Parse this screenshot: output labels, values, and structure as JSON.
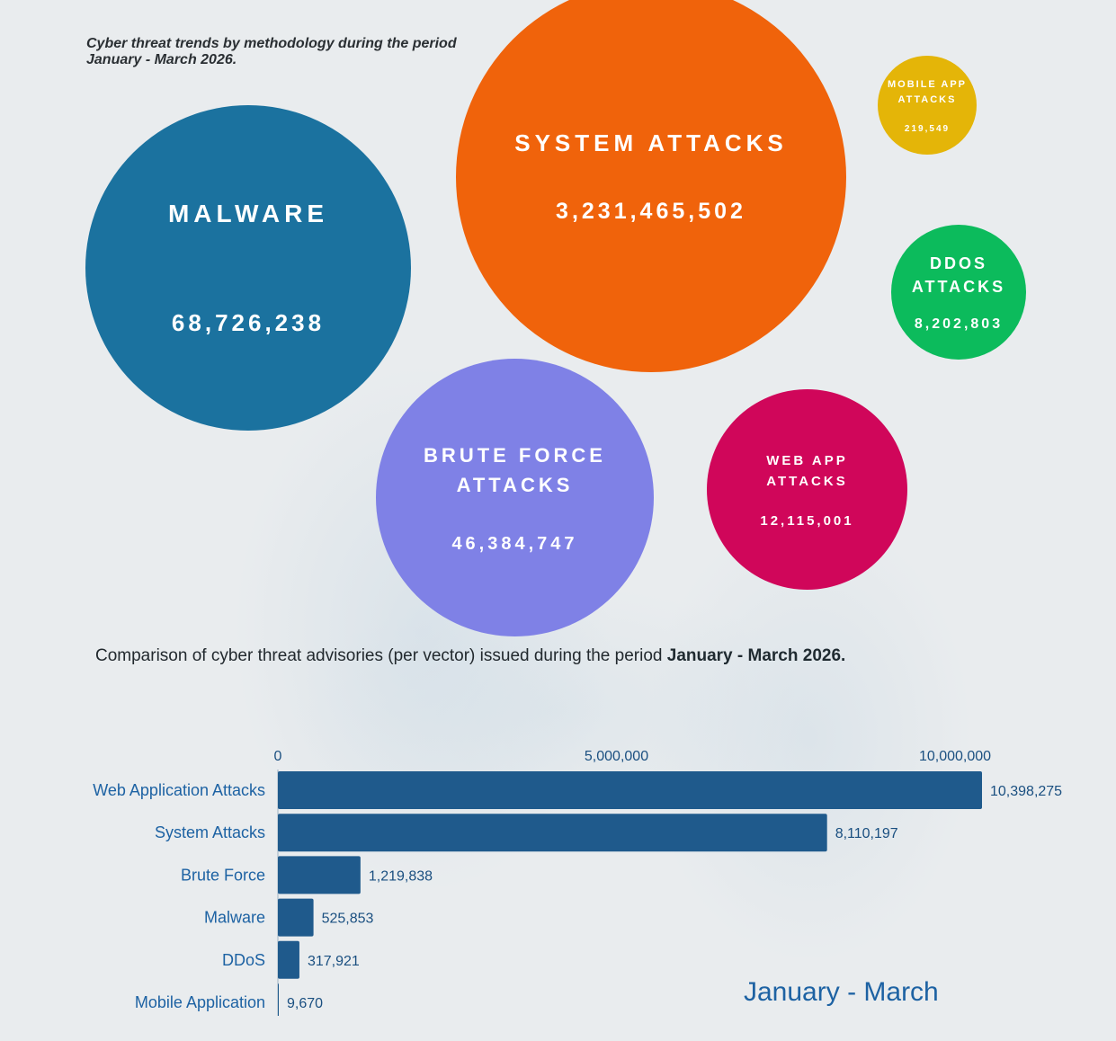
{
  "bubble_chart": {
    "subtitle": "Cyber threat trends by methodology during the period January - March 2026.",
    "bubbles": [
      {
        "key": "malware",
        "label": "MALWARE",
        "value": "68,726,238",
        "color": "#1b729f"
      },
      {
        "key": "system",
        "label": "SYSTEM ATTACKS",
        "value": "3,231,465,502",
        "color": "#f0630b"
      },
      {
        "key": "mobile",
        "label": "MOBILE APP ATTACKS",
        "value": "219,549",
        "color": "#e4b508"
      },
      {
        "key": "ddos",
        "label": "DDOS ATTACKS",
        "value": "8,202,803",
        "color": "#0cbb5c"
      },
      {
        "key": "brute",
        "label": "BRUTE FORCE ATTACKS",
        "value": "46,384,747",
        "color": "#7f81e6"
      },
      {
        "key": "web",
        "label": "WEB APP ATTACKS",
        "value": "12,115,001",
        "color": "#d0065a"
      }
    ]
  },
  "advisory_chart": {
    "heading_prefix": "Comparison of cyber threat advisories (per vector) issued during the period ",
    "heading_bold": "January - March  2026."
  },
  "chart_data": {
    "type": "bar",
    "orientation": "horizontal",
    "categories": [
      "Web Application Attacks",
      "System Attacks",
      "Brute Force",
      "Malware",
      "DDoS",
      "Mobile Application"
    ],
    "values": [
      10398275,
      8110197,
      1219838,
      525853,
      317921,
      9670
    ],
    "value_labels": [
      "10,398,275",
      "8,110,197",
      "1,219,838",
      "525,853",
      "317,921",
      "9,670"
    ],
    "xlim": [
      0,
      10398275
    ],
    "x_ticks": [
      0,
      5000000,
      10000000
    ],
    "x_tick_labels": [
      "0",
      "5,000,000",
      "10,000,000"
    ],
    "x_axis_position": "top",
    "grid": false,
    "legend": "January - March",
    "legend_placement": "bottom-right",
    "bar_color": "#1f5a8c"
  }
}
